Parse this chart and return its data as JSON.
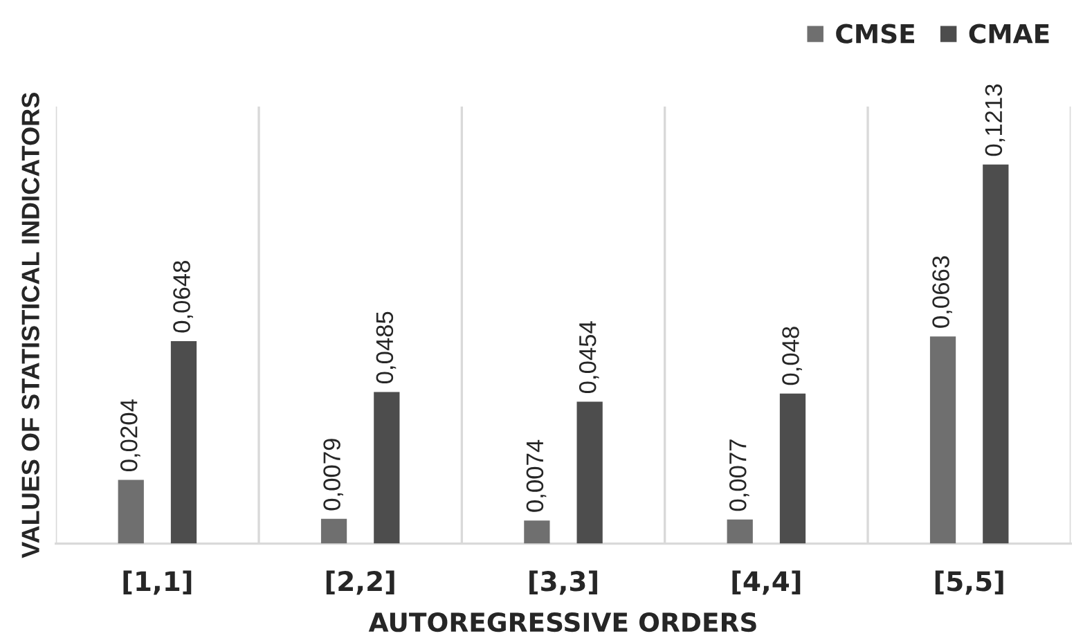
{
  "chart_data": {
    "type": "bar",
    "xlabel": "AUTOREGRESSIVE ORDERS",
    "ylabel": "VALUES OF STATISTICAL INDICATORS",
    "categories": [
      "[1,1]",
      "[2,2]",
      "[3,3]",
      "[4,4]",
      "[5,5]"
    ],
    "series": [
      {
        "name": "CMSE",
        "color": "#6f6f6f",
        "values": [
          0.0204,
          0.0079,
          0.0074,
          0.0077,
          0.0663
        ],
        "value_labels": [
          "0,0204",
          "0,0079",
          "0,0074",
          "0,0077",
          "0,0663"
        ]
      },
      {
        "name": "CMAE",
        "color": "#4d4d4d",
        "values": [
          0.0648,
          0.0485,
          0.0454,
          0.048,
          0.1213
        ],
        "value_labels": [
          "0,0648",
          "0,0485",
          "0,0454",
          "0,048",
          "0,1213"
        ]
      }
    ],
    "grid": "x",
    "legend": "top right",
    "tick_labels": "x"
  }
}
